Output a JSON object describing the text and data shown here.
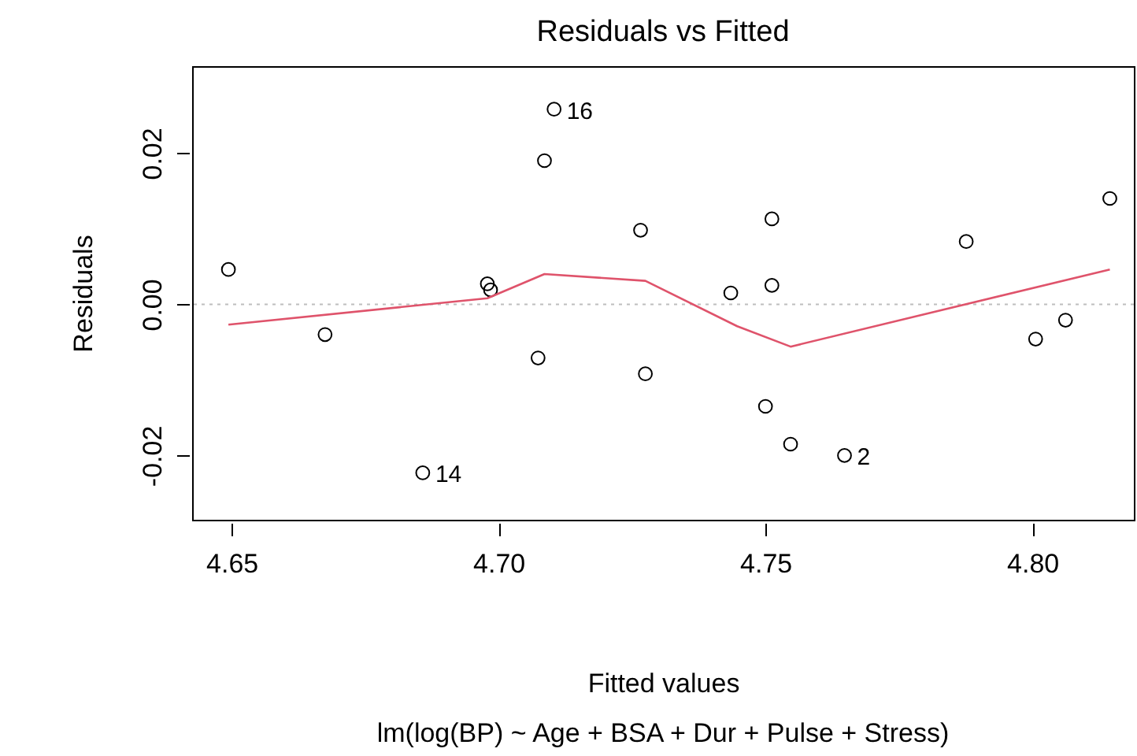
{
  "chart_data": {
    "type": "scatter",
    "title": "Residuals vs Fitted",
    "xlabel": "Fitted values",
    "ylabel": "Residuals",
    "annotations": [
      {
        "text": "14",
        "x": 4.6858,
        "y": -0.0223
      },
      {
        "text": "16",
        "x": 4.7104,
        "y": 0.0258
      },
      {
        "text": "2",
        "x": 4.7648,
        "y": -0.02
      },
      "lm(log(BP) ~ Age + BSA + Dur + Pulse + Stress)"
    ],
    "xlim": [
      4.6426,
      4.819
    ],
    "ylim": [
      -0.0285,
      0.0315
    ],
    "xticks": [
      {
        "value": 4.65,
        "label": "4.65"
      },
      {
        "value": 4.7,
        "label": "4.70"
      },
      {
        "value": 4.75,
        "label": "4.75"
      },
      {
        "value": 4.8,
        "label": "4.80"
      }
    ],
    "yticks": [
      {
        "value": -0.02,
        "label": "-0.02"
      },
      {
        "value": 0,
        "label": "0.00"
      },
      {
        "value": 0.02,
        "label": "0.02"
      }
    ],
    "grid": false,
    "marker": "circle",
    "ref_lines": [
      {
        "axis": "y",
        "value": 0,
        "color": "#bebebe",
        "line_style": "dotted"
      }
    ],
    "series": [
      {
        "type": "scatter",
        "color": "#000000",
        "x": [
          4.6494,
          4.6675,
          4.6858,
          4.6979,
          4.6985,
          4.7086,
          4.7074,
          4.7104,
          4.7266,
          4.7275,
          4.7435,
          4.75,
          4.7512,
          4.7512,
          4.7547,
          4.7648,
          4.7876,
          4.8006,
          4.8062,
          4.8145
        ],
        "values": [
          0.0046,
          -0.004,
          -0.0223,
          0.0027,
          0.0019,
          0.019,
          -0.0071,
          0.0258,
          0.0098,
          -0.0092,
          0.0015,
          -0.0135,
          0.0113,
          0.0025,
          -0.0185,
          -0.02,
          0.0083,
          -0.0046,
          -0.0021,
          0.014
        ]
      },
      {
        "type": "line",
        "color": "#df536b",
        "marker": "none",
        "x": [
          4.6494,
          4.6979,
          4.7086,
          4.7275,
          4.7447,
          4.7547,
          4.8145
        ],
        "values": [
          -0.0027,
          0.0008,
          0.004,
          0.0031,
          -0.0029,
          -0.0056,
          0.0046
        ]
      }
    ]
  }
}
